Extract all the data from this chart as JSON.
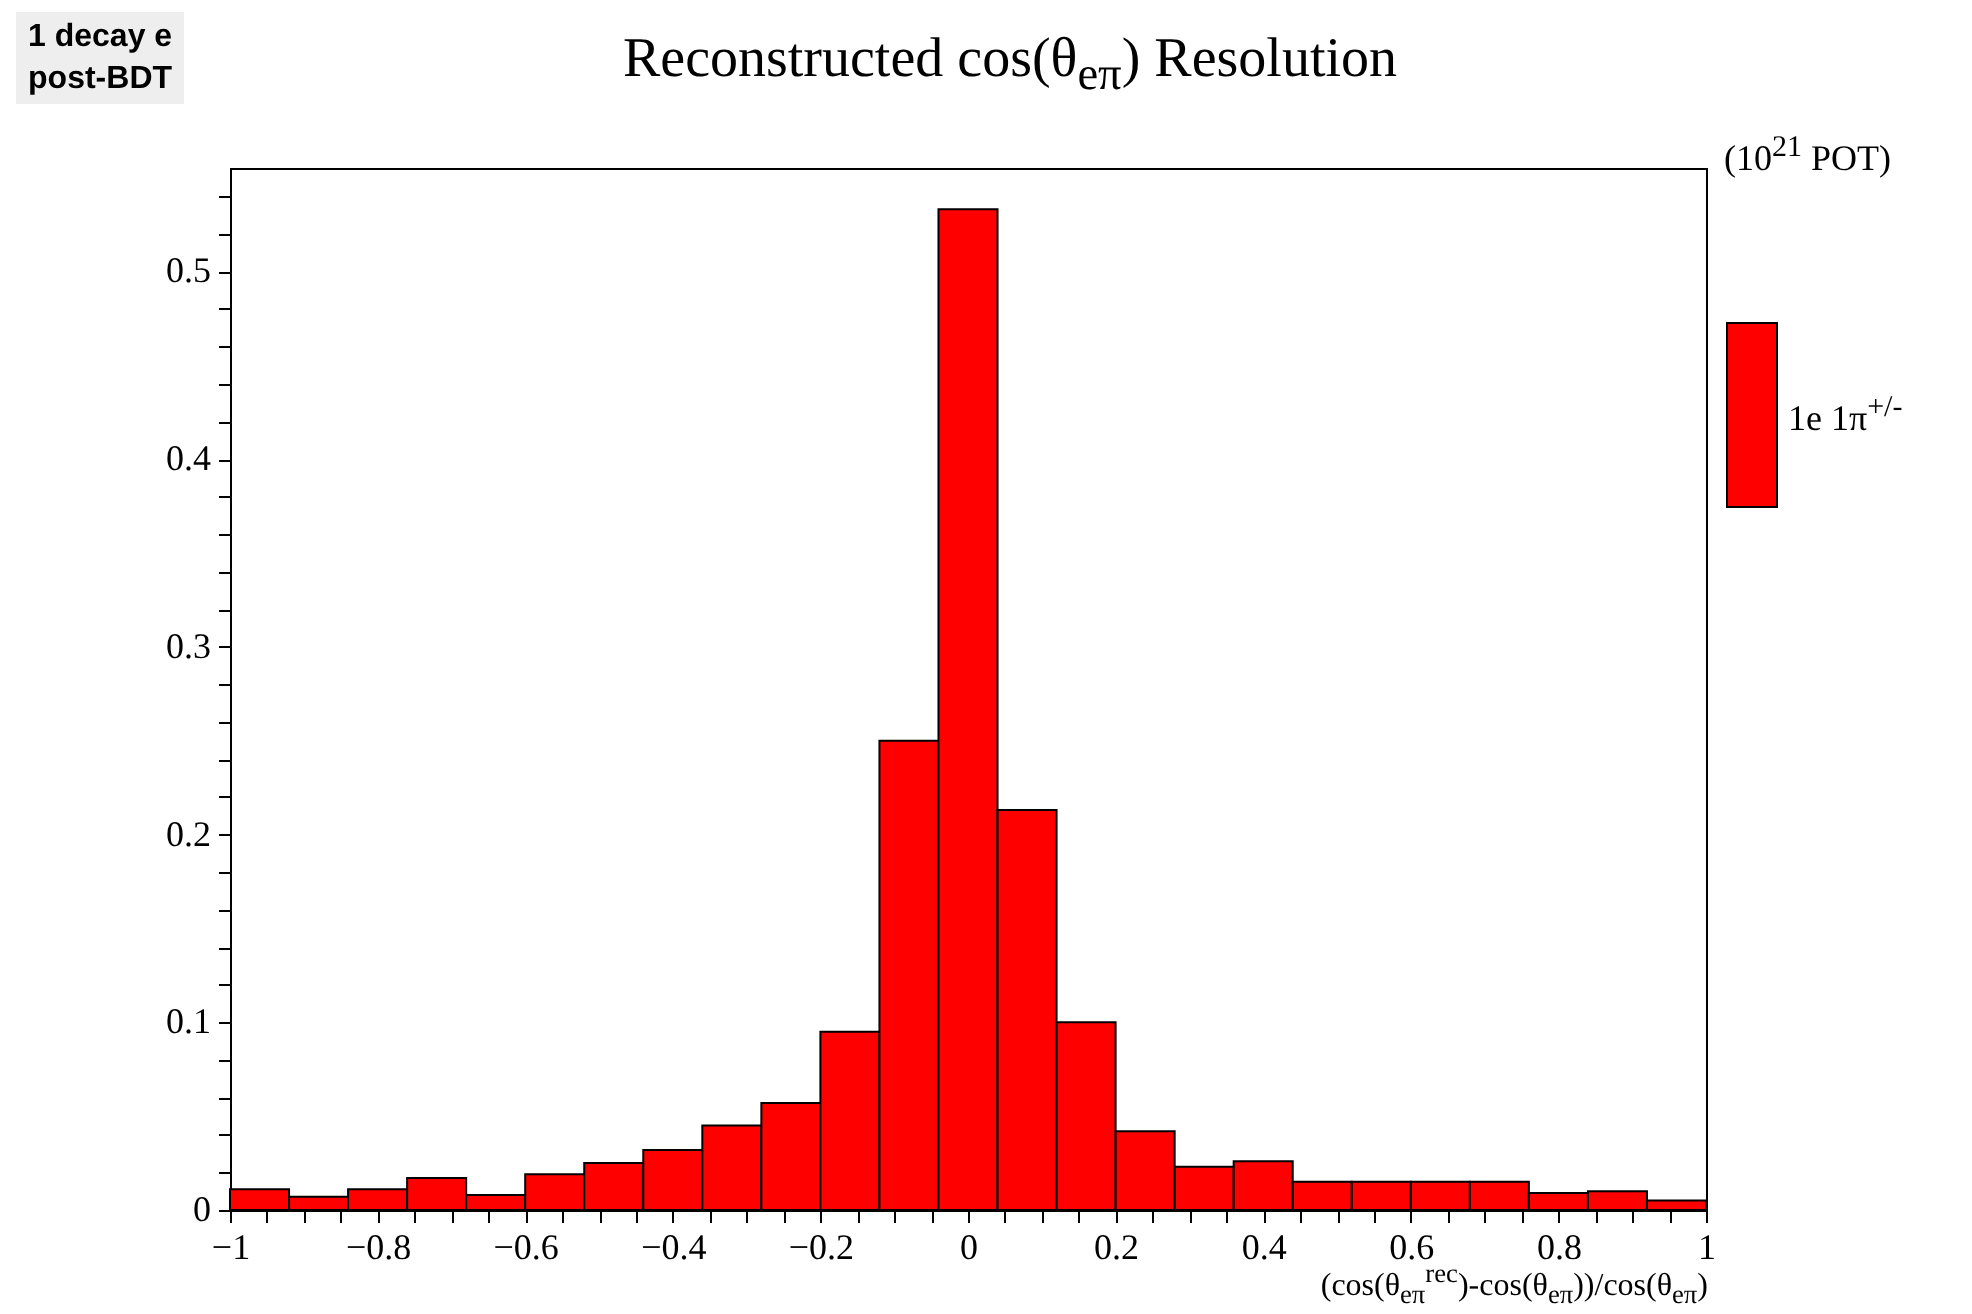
{
  "chart_data": {
    "type": "histogram",
    "title": "Reconstructed cos(θ$_{eπ}$) Resolution",
    "xlabel": "(cos(θ$_{eπ}$$^{rec}$)-cos(θ$_{eπ}$))/cos(θ$_{eπ}$)",
    "annotations": [
      "1 decay e\npost-BDT",
      "(10$^{21}$ POT)"
    ],
    "bins": [
      -1,
      -0.92,
      -0.84,
      -0.76,
      -0.68,
      -0.6,
      -0.52,
      -0.44,
      -0.36,
      -0.28,
      -0.2,
      -0.12,
      -0.04,
      0.04,
      0.12,
      0.2,
      0.28,
      0.36,
      0.44,
      0.52,
      0.6,
      0.68,
      0.76,
      0.84,
      0.92,
      1
    ],
    "series": [
      {
        "name": "1e 1π$^{+/-}$",
        "color": "#ff0000",
        "values": [
          0.011,
          0.007,
          0.011,
          0.017,
          0.008,
          0.019,
          0.025,
          0.032,
          0.045,
          0.057,
          0.095,
          0.25,
          0.533,
          0.213,
          0.1,
          0.042,
          0.023,
          0.026,
          0.015,
          0.015,
          0.015,
          0.015,
          0.009,
          0.01,
          0.005
        ]
      }
    ],
    "xlim": [
      -1,
      1
    ],
    "ylim": [
      0,
      0.555
    ],
    "xticks": [
      -1,
      {
        "value": -0.95,
        "label": null
      },
      {
        "value": -0.9,
        "label": null
      },
      {
        "value": -0.85,
        "label": null
      },
      -0.8,
      {
        "value": -0.75,
        "label": null
      },
      {
        "value": -0.7,
        "label": null
      },
      {
        "value": -0.65,
        "label": null
      },
      -0.6,
      {
        "value": -0.55,
        "label": null
      },
      {
        "value": -0.5,
        "label": null
      },
      {
        "value": -0.45,
        "label": null
      },
      -0.4,
      {
        "value": -0.35,
        "label": null
      },
      {
        "value": -0.3,
        "label": null
      },
      {
        "value": -0.25,
        "label": null
      },
      -0.2,
      {
        "value": -0.15,
        "label": null
      },
      {
        "value": -0.1,
        "label": null
      },
      {
        "value": -0.05,
        "label": null
      },
      0,
      {
        "value": 0.05,
        "label": null
      },
      {
        "value": 0.1,
        "label": null
      },
      {
        "value": 0.15,
        "label": null
      },
      0.2,
      {
        "value": 0.25,
        "label": null
      },
      {
        "value": 0.3,
        "label": null
      },
      {
        "value": 0.35,
        "label": null
      },
      0.4,
      {
        "value": 0.45,
        "label": null
      },
      {
        "value": 0.5,
        "label": null
      },
      {
        "value": 0.55,
        "label": null
      },
      0.6,
      {
        "value": 0.65,
        "label": null
      },
      {
        "value": 0.7,
        "label": null
      },
      {
        "value": 0.75,
        "label": null
      },
      0.8,
      {
        "value": 0.85,
        "label": null
      },
      {
        "value": 0.9,
        "label": null
      },
      {
        "value": 0.95,
        "label": null
      },
      1
    ],
    "yticks": [
      0,
      {
        "value": 0.02,
        "label": null
      },
      {
        "value": 0.04,
        "label": null
      },
      {
        "value": 0.06,
        "label": null
      },
      {
        "value": 0.08,
        "label": null
      },
      0.1,
      {
        "value": 0.12,
        "label": null
      },
      {
        "value": 0.14,
        "label": null
      },
      {
        "value": 0.16,
        "label": null
      },
      {
        "value": 0.18,
        "label": null
      },
      0.2,
      {
        "value": 0.22,
        "label": null
      },
      {
        "value": 0.24,
        "label": null
      },
      {
        "value": 0.26,
        "label": null
      },
      {
        "value": 0.28,
        "label": null
      },
      0.3,
      {
        "value": 0.32,
        "label": null
      },
      {
        "value": 0.34,
        "label": null
      },
      {
        "value": 0.36,
        "label": null
      },
      {
        "value": 0.38,
        "label": null
      },
      0.4,
      {
        "value": 0.42,
        "label": null
      },
      {
        "value": 0.44,
        "label": null
      },
      {
        "value": 0.46,
        "label": null
      },
      {
        "value": 0.48,
        "label": null
      },
      0.5,
      {
        "value": 0.52,
        "label": null
      },
      {
        "value": 0.54,
        "label": null
      }
    ],
    "legend": "right",
    "grid": false
  }
}
